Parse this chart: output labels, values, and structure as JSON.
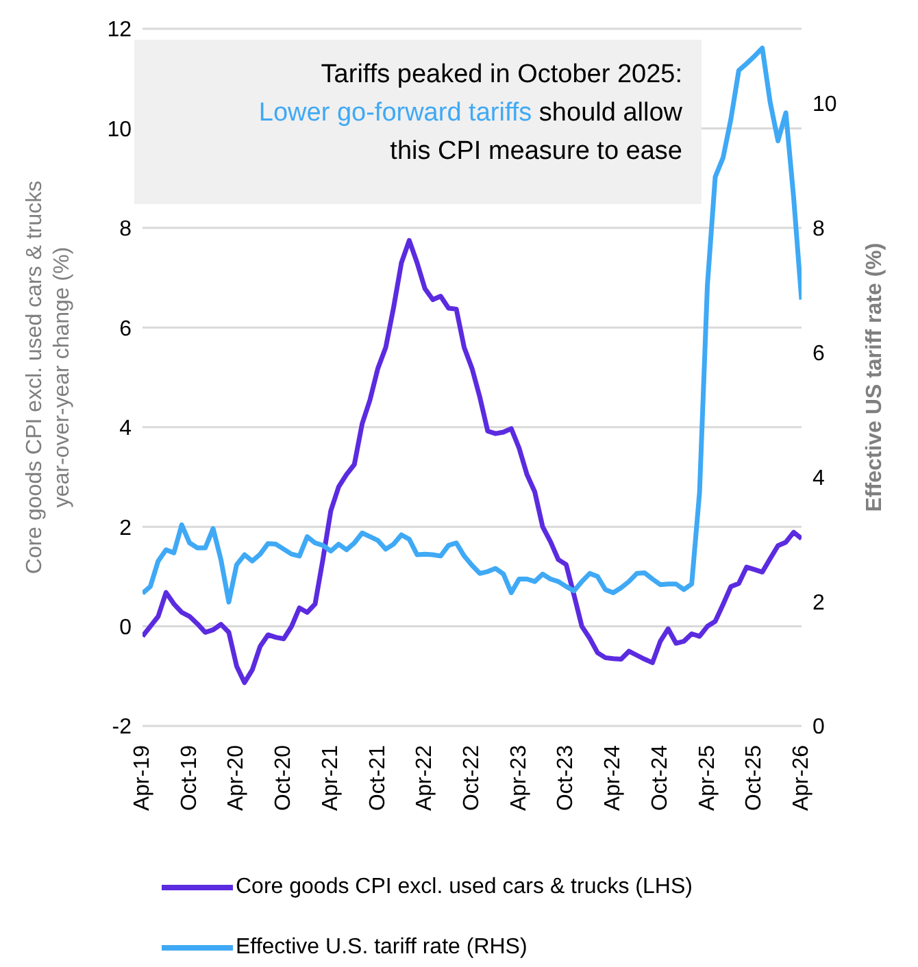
{
  "chart_data": {
    "type": "line",
    "annotations": [
      "Tariffs peaked in October 2025:",
      "Lower go-forward tariffs should allow",
      "this CPI measure to ease"
    ],
    "ylabel": "Core goods CPI excl. used cars & trucks year-over-year change (%)",
    "y2label": "Effective US tariff rate (%)",
    "x": [
      "2019-04",
      "2019-05",
      "2019-06",
      "2019-07",
      "2019-08",
      "2019-09",
      "2019-10",
      "2019-11",
      "2019-12",
      "2020-01",
      "2020-02",
      "2020-03",
      "2020-04",
      "2020-05",
      "2020-06",
      "2020-07",
      "2020-08",
      "2020-09",
      "2020-10",
      "2020-11",
      "2020-12",
      "2021-01",
      "2021-02",
      "2021-03",
      "2021-04",
      "2021-05",
      "2021-06",
      "2021-07",
      "2021-08",
      "2021-09",
      "2021-10",
      "2021-11",
      "2021-12",
      "2022-01",
      "2022-02",
      "2022-03",
      "2022-04",
      "2022-05",
      "2022-06",
      "2022-07",
      "2022-08",
      "2022-09",
      "2022-10",
      "2022-11",
      "2022-12",
      "2023-01",
      "2023-02",
      "2023-03",
      "2023-04",
      "2023-05",
      "2023-06",
      "2023-07",
      "2023-08",
      "2023-09",
      "2023-10",
      "2023-11",
      "2023-12",
      "2024-01",
      "2024-02",
      "2024-03",
      "2024-04",
      "2024-05",
      "2024-06",
      "2024-07",
      "2024-08",
      "2024-09",
      "2024-10",
      "2024-11",
      "2024-12",
      "2025-01",
      "2025-02",
      "2025-03",
      "2025-04",
      "2025-05",
      "2025-06",
      "2025-07",
      "2025-08",
      "2025-09",
      "2025-10",
      "2025-11",
      "2025-12",
      "2026-01",
      "2026-02",
      "2026-03",
      "2026-04"
    ],
    "series": [
      {
        "name": "Core goods CPI excl. used cars & trucks (LHS)",
        "color": "#5b2be0",
        "values": [
          -0.2,
          0.0,
          0.2,
          0.68,
          0.45,
          0.28,
          0.2,
          0.05,
          -0.12,
          -0.07,
          0.04,
          -0.12,
          -0.8,
          -1.13,
          -0.87,
          -0.4,
          -0.17,
          -0.22,
          -0.25,
          0.0,
          0.37,
          0.28,
          0.45,
          1.35,
          2.32,
          2.8,
          3.05,
          3.25,
          4.07,
          4.55,
          5.18,
          5.6,
          6.4,
          7.3,
          7.75,
          7.3,
          6.78,
          6.56,
          6.63,
          6.39,
          6.37,
          5.6,
          5.18,
          4.6,
          3.92,
          3.87,
          3.9,
          3.97,
          3.58,
          3.05,
          2.7,
          2.0,
          1.7,
          1.34,
          1.24,
          0.63,
          0.0,
          -0.24,
          -0.53,
          -0.63,
          -0.65,
          -0.66,
          -0.5,
          -0.58,
          -0.66,
          -0.73,
          -0.3,
          -0.05,
          -0.34,
          -0.3,
          -0.15,
          -0.2,
          0.0,
          0.1,
          0.44,
          0.8,
          0.86,
          1.19,
          1.14,
          1.09,
          1.36,
          1.62,
          1.69,
          1.89,
          1.76
        ]
      },
      {
        "name": "Effective U.S. tariff rate (RHS)",
        "color": "#3fa9f5",
        "axis": "y2",
        "values": [
          2.13,
          2.24,
          2.65,
          2.83,
          2.78,
          3.23,
          2.94,
          2.86,
          2.86,
          3.17,
          2.67,
          1.99,
          2.59,
          2.75,
          2.65,
          2.76,
          2.93,
          2.92,
          2.84,
          2.76,
          2.73,
          3.04,
          2.94,
          2.9,
          2.81,
          2.92,
          2.83,
          2.94,
          3.1,
          3.04,
          2.98,
          2.84,
          2.92,
          3.07,
          3.0,
          2.75,
          2.76,
          2.75,
          2.73,
          2.9,
          2.94,
          2.73,
          2.58,
          2.45,
          2.48,
          2.53,
          2.44,
          2.14,
          2.36,
          2.36,
          2.32,
          2.44,
          2.36,
          2.32,
          2.24,
          2.17,
          2.32,
          2.45,
          2.4,
          2.19,
          2.14,
          2.22,
          2.32,
          2.45,
          2.46,
          2.36,
          2.27,
          2.28,
          2.28,
          2.19,
          2.28,
          3.75,
          7.08,
          8.82,
          9.13,
          9.75,
          10.53,
          10.64,
          10.76,
          10.89,
          10.02,
          9.4,
          9.85,
          8.48,
          6.85
        ]
      }
    ],
    "xlim": [
      "2019-04",
      "2026-04"
    ],
    "xticks": [
      {
        "value": "2019-04",
        "label": "Apr-19"
      },
      {
        "value": "2019-10",
        "label": "Oct-19"
      },
      {
        "value": "2020-04",
        "label": "Apr-20"
      },
      {
        "value": "2020-10",
        "label": "Oct-20"
      },
      {
        "value": "2021-04",
        "label": "Apr-21"
      },
      {
        "value": "2021-10",
        "label": "Oct-21"
      },
      {
        "value": "2022-04",
        "label": "Apr-22"
      },
      {
        "value": "2022-10",
        "label": "Oct-22"
      },
      {
        "value": "2023-04",
        "label": "Apr-23"
      },
      {
        "value": "2023-10",
        "label": "Oct-23"
      },
      {
        "value": "2024-04",
        "label": "Apr-24"
      },
      {
        "value": "2024-10",
        "label": "Oct-24"
      },
      {
        "value": "2025-04",
        "label": "Apr-25"
      },
      {
        "value": "2025-10",
        "label": "Oct-25"
      },
      {
        "value": "2026-04",
        "label": "Apr-26"
      }
    ],
    "ylim": [
      -2,
      12
    ],
    "yticks": [
      -2,
      0,
      2,
      4,
      6,
      8,
      10,
      12
    ],
    "y2lim": [
      0,
      11.2
    ],
    "y2ticks": [
      0,
      2,
      4,
      6,
      8,
      10
    ],
    "grid": "y",
    "legend": "bottom",
    "marker": "none",
    "line_style": "solid"
  }
}
